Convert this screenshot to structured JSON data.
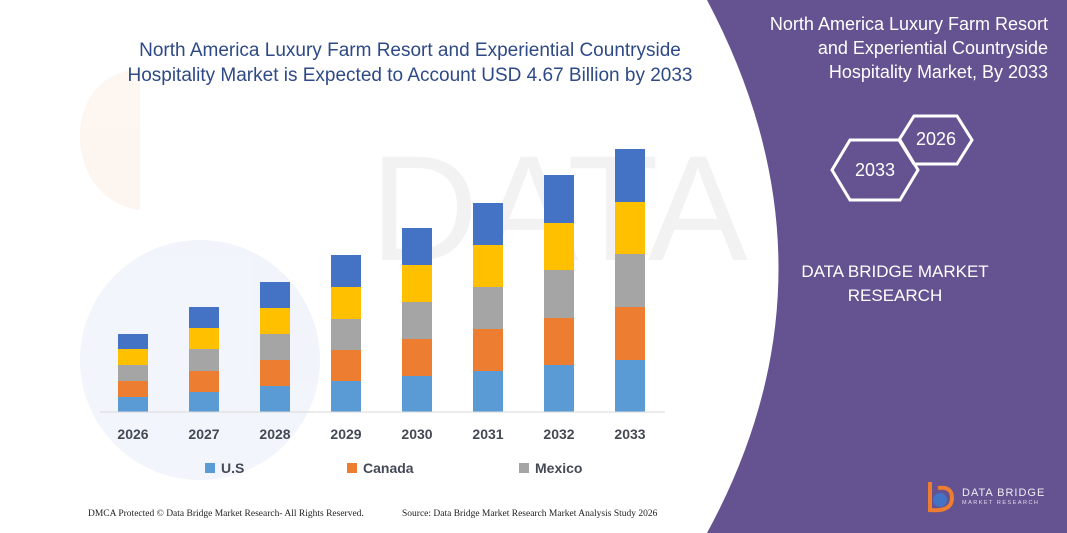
{
  "chart_title": "North America Luxury Farm Resort and Experiential Countryside Hospitality Market is Expected to Account USD 4.67 Billion by 2033",
  "side_panel": {
    "title": "North America Luxury Farm Resort and Experiential Countryside Hospitality Market, By 2033",
    "hex_start": "2026",
    "hex_end": "2033",
    "brand": "DATA BRIDGE MARKET RESEARCH",
    "logo_text": "DATA BRIDGE",
    "logo_sub": "MARKET RESEARCH"
  },
  "colors": {
    "panel": "#655290",
    "us": "#5b9bd5",
    "canada": "#ed7d31",
    "mexico": "#a5a5a5",
    "segment4": "#ffc000",
    "segment5": "#4472c4"
  },
  "chart_data": {
    "type": "bar",
    "stacked": true,
    "categories": [
      "2026",
      "2027",
      "2028",
      "2029",
      "2030",
      "2031",
      "2032",
      "2033"
    ],
    "series": [
      {
        "name": "U.S",
        "values": [
          15,
          20,
          26,
          31,
          36,
          41,
          47,
          52
        ]
      },
      {
        "name": "Canada",
        "values": [
          16,
          21,
          26,
          31,
          37,
          42,
          47,
          53
        ]
      },
      {
        "name": "Mexico",
        "values": [
          16,
          22,
          26,
          31,
          37,
          42,
          48,
          53
        ]
      },
      {
        "name": "",
        "values": [
          16,
          21,
          26,
          32,
          37,
          42,
          47,
          52
        ]
      },
      {
        "name": "",
        "values": [
          15,
          21,
          26,
          32,
          37,
          42,
          48,
          53
        ]
      }
    ],
    "y_axis_visible": false,
    "legend": "bottom",
    "grid": false
  },
  "footer": {
    "left": "DMCA Protected © Data Bridge Market Research- All Rights Reserved.",
    "right": "Source: Data Bridge Market Research Market Analysis Study 2026"
  }
}
